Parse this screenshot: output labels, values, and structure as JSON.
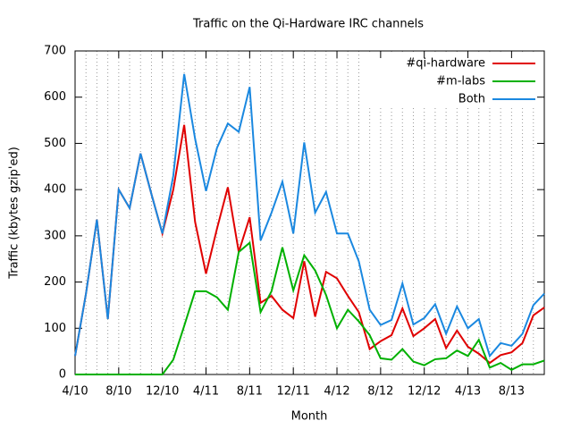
{
  "chart_data": {
    "type": "line",
    "title": "Traffic on the Qi-Hardware IRC channels",
    "xlabel": "Month",
    "ylabel": "Traffic (kbytes gzip'ed)",
    "x": [
      0,
      1,
      2,
      3,
      4,
      5,
      6,
      7,
      8,
      9,
      10,
      11,
      12,
      13,
      14,
      15,
      16,
      17,
      18,
      19,
      20,
      21,
      22,
      23,
      24,
      25,
      26,
      27,
      28,
      29,
      30,
      31,
      32,
      33,
      34,
      35,
      36,
      37,
      38,
      39,
      40,
      41,
      42,
      43
    ],
    "xlim": [
      0,
      43
    ],
    "xticks": [
      {
        "value": 0,
        "label": "4/10"
      },
      {
        "value": 4,
        "label": "8/10"
      },
      {
        "value": 8,
        "label": "12/10"
      },
      {
        "value": 12,
        "label": "4/11"
      },
      {
        "value": 16,
        "label": "8/11"
      },
      {
        "value": 20,
        "label": "12/11"
      },
      {
        "value": 24,
        "label": "4/12"
      },
      {
        "value": 28,
        "label": "8/12"
      },
      {
        "value": 32,
        "label": "12/12"
      },
      {
        "value": 36,
        "label": "4/13"
      },
      {
        "value": 40,
        "label": "8/13"
      }
    ],
    "ylim": [
      0,
      700
    ],
    "yticks": [
      0,
      100,
      200,
      300,
      400,
      500,
      600,
      700
    ],
    "grid": true,
    "legend": "top-right",
    "series": [
      {
        "name": "#qi-hardware",
        "color": "#e00000",
        "values": [
          40,
          175,
          335,
          120,
          400,
          360,
          478,
          390,
          305,
          400,
          540,
          330,
          218,
          315,
          405,
          265,
          340,
          155,
          170,
          140,
          122,
          245,
          125,
          222,
          208,
          170,
          135,
          55,
          72,
          85,
          143,
          83,
          100,
          120,
          57,
          95,
          60,
          45,
          25,
          42,
          48,
          68,
          128,
          145
        ]
      },
      {
        "name": "#m-labs",
        "color": "#00b000",
        "values": [
          0,
          0,
          0,
          0,
          0,
          0,
          0,
          0,
          0,
          32,
          105,
          180,
          180,
          167,
          140,
          265,
          285,
          135,
          180,
          275,
          182,
          258,
          225,
          172,
          100,
          140,
          115,
          85,
          35,
          32,
          55,
          28,
          20,
          33,
          35,
          52,
          40,
          75,
          15,
          25,
          10,
          22,
          22,
          30
        ]
      },
      {
        "name": "Both",
        "color": "#1a88e0",
        "values": [
          40,
          175,
          335,
          120,
          400,
          360,
          478,
          390,
          305,
          430,
          650,
          510,
          397,
          490,
          543,
          525,
          622,
          290,
          350,
          417,
          305,
          502,
          350,
          395,
          305,
          305,
          245,
          140,
          107,
          118,
          197,
          108,
          122,
          152,
          88,
          147,
          100,
          120,
          40,
          68,
          62,
          88,
          150,
          175
        ]
      }
    ]
  }
}
